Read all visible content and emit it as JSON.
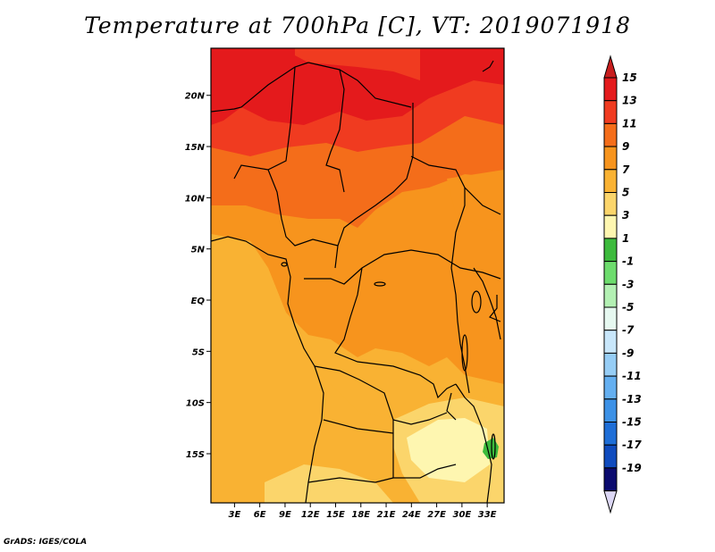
{
  "title": "Temperature at 700hPa [C], VT: 2019071918",
  "credit": "GrADS: IGES/COLA",
  "map": {
    "lat_labels": [
      {
        "lat": 20,
        "label": "20N"
      },
      {
        "lat": 15,
        "label": "15N"
      },
      {
        "lat": 10,
        "label": "10N"
      },
      {
        "lat": 5,
        "label": "5N"
      },
      {
        "lat": 0,
        "label": "EQ"
      },
      {
        "lat": -5,
        "label": "5S"
      },
      {
        "lat": -10,
        "label": "10S"
      },
      {
        "lat": -15,
        "label": "15S"
      }
    ],
    "lon_labels": [
      {
        "lon": 3,
        "label": "3E"
      },
      {
        "lon": 6,
        "label": "6E"
      },
      {
        "lon": 9,
        "label": "9E"
      },
      {
        "lon": 12,
        "label": "12E"
      },
      {
        "lon": 15,
        "label": "15E"
      },
      {
        "lon": 18,
        "label": "18E"
      },
      {
        "lon": 21,
        "label": "21E"
      },
      {
        "lon": 24,
        "label": "24E"
      },
      {
        "lon": 27,
        "label": "27E"
      },
      {
        "lon": 30,
        "label": "30E"
      },
      {
        "lon": 33,
        "label": "33E"
      }
    ],
    "lon_range": [
      0.2,
      35.0
    ],
    "lat_range": [
      -19.8,
      24.6
    ]
  },
  "colorbar": {
    "levels": [
      {
        "label": "15",
        "color": "#e41a1c"
      },
      {
        "label": "13",
        "color": "#f03b20"
      },
      {
        "label": "11",
        "color": "#f46d1a"
      },
      {
        "label": "9",
        "color": "#f7941d"
      },
      {
        "label": "7",
        "color": "#f9b233"
      },
      {
        "label": "5",
        "color": "#fbd56b"
      },
      {
        "label": "3",
        "color": "#fef6b0"
      },
      {
        "label": "1",
        "color": "#3cba3c"
      },
      {
        "label": "-1",
        "color": "#6ddc6d"
      },
      {
        "label": "-3",
        "color": "#b3f0b3"
      },
      {
        "label": "-5",
        "color": "#e6f8f0"
      },
      {
        "label": "-7",
        "color": "#c8e6fa"
      },
      {
        "label": "-9",
        "color": "#96cdf5"
      },
      {
        "label": "-11",
        "color": "#64aff0"
      },
      {
        "label": "-13",
        "color": "#3c91e6"
      },
      {
        "label": "-15",
        "color": "#1e6ed7"
      },
      {
        "label": "-17",
        "color": "#0f4bbe"
      },
      {
        "label": "-19",
        "color": "#0a2896"
      }
    ],
    "bottom_color": "#0a0a6e",
    "top_triangle_color": "#c81e1e",
    "bottom_triangle_color": "#dcd7f5"
  }
}
